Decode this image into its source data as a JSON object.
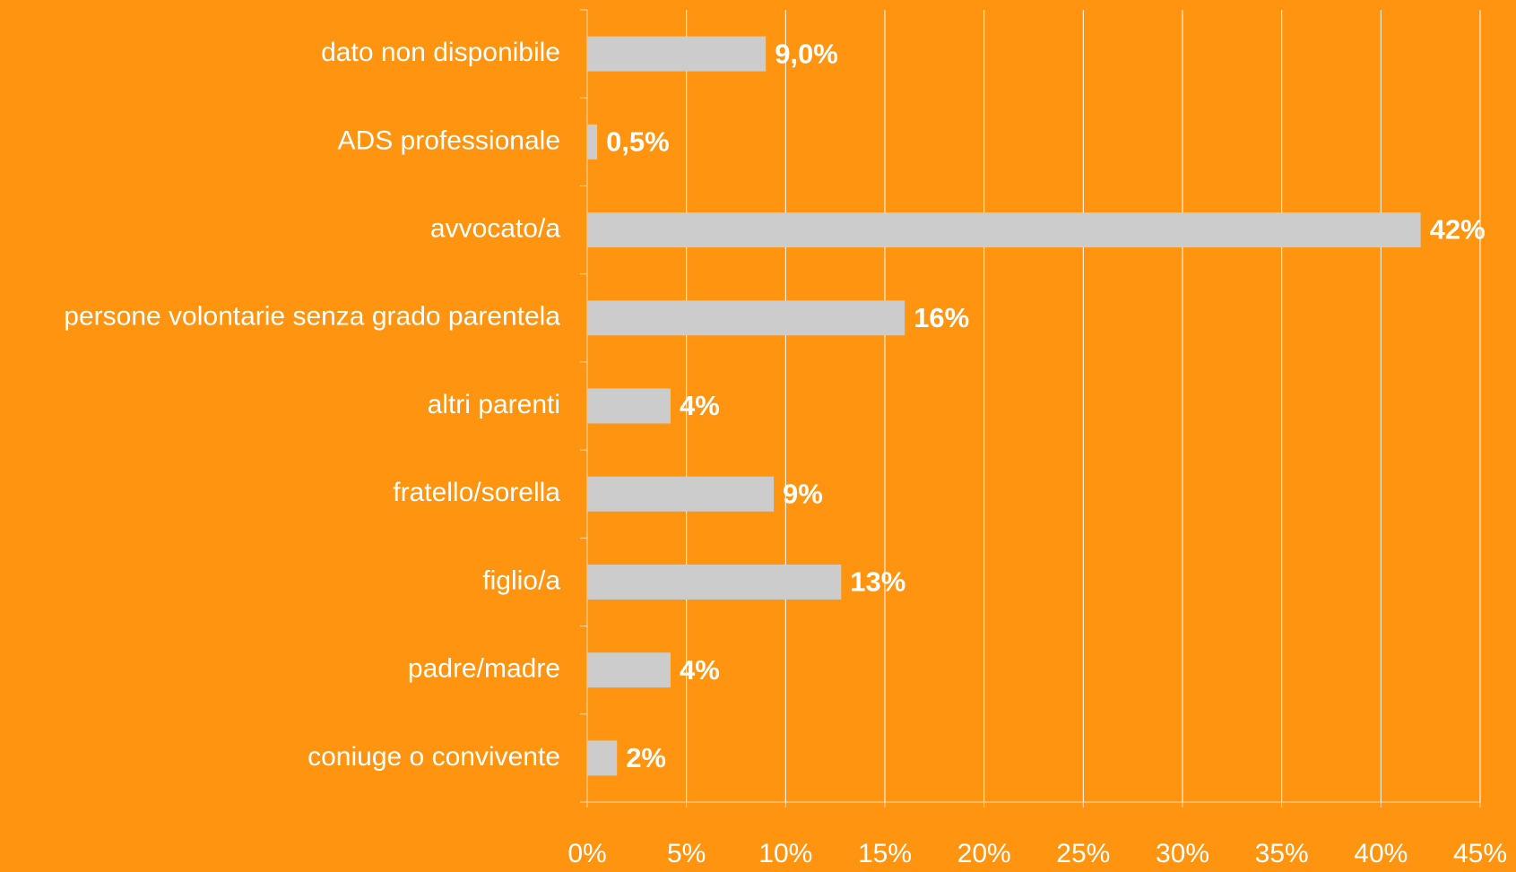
{
  "chart_data": {
    "type": "bar",
    "orientation": "horizontal",
    "categories": [
      "dato non disponibile",
      "ADS professionale",
      "avvocato/a",
      "persone volontarie senza grado parentela",
      "altri parenti",
      "fratello/sorella",
      "figlio/a",
      "padre/madre",
      "coniuge o convivente"
    ],
    "values": [
      9.0,
      0.5,
      42,
      16,
      4.2,
      9.4,
      12.8,
      4.2,
      1.5
    ],
    "value_labels": [
      "9,0%",
      "0,5%",
      "42%",
      "16%",
      "4%",
      "9%",
      "13%",
      "4%",
      "2%"
    ],
    "color": "#cccccc",
    "xlim": [
      0,
      45
    ],
    "xticks": [
      {
        "value": 0,
        "label": "0%"
      },
      {
        "value": 5,
        "label": "5%"
      },
      {
        "value": 10,
        "label": "10%"
      },
      {
        "value": 15,
        "label": "15%"
      },
      {
        "value": 20,
        "label": "20%"
      },
      {
        "value": 25,
        "label": "25%"
      },
      {
        "value": 30,
        "label": "30%"
      },
      {
        "value": 35,
        "label": "35%"
      },
      {
        "value": 40,
        "label": "40%"
      },
      {
        "value": 45,
        "label": "45%"
      }
    ],
    "grid": true
  }
}
